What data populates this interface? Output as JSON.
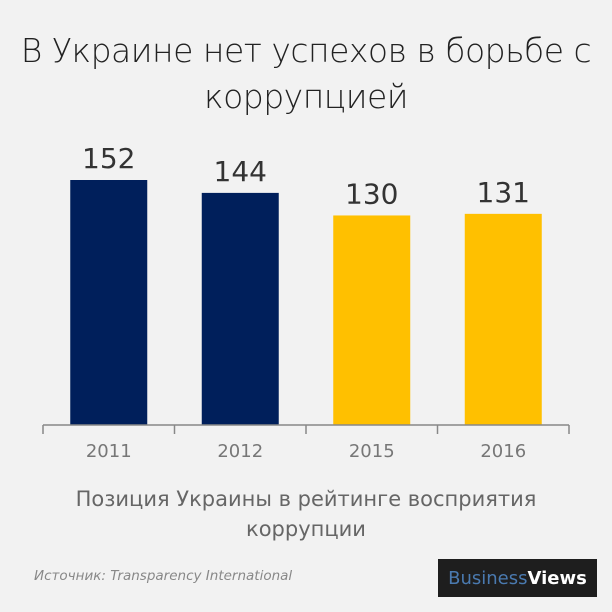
{
  "chart_data": {
    "type": "bar",
    "title": "В Украине нет успехов в борьбе с коррупцией",
    "categories": [
      "2011",
      "2012",
      "2015",
      "2016"
    ],
    "values": [
      152,
      144,
      130,
      131
    ],
    "bar_colors": [
      "#001f5b",
      "#001f5b",
      "#ffc000",
      "#ffc000"
    ],
    "xlabel": "Позиция Украины в рейтинге восприятия коррупции",
    "ylabel": "",
    "ylim": [
      0,
      152
    ],
    "grid": false,
    "data_labels": true
  },
  "source": "Источник: Transparency International",
  "logo": {
    "part1": "Business",
    "part2": "Views"
  }
}
